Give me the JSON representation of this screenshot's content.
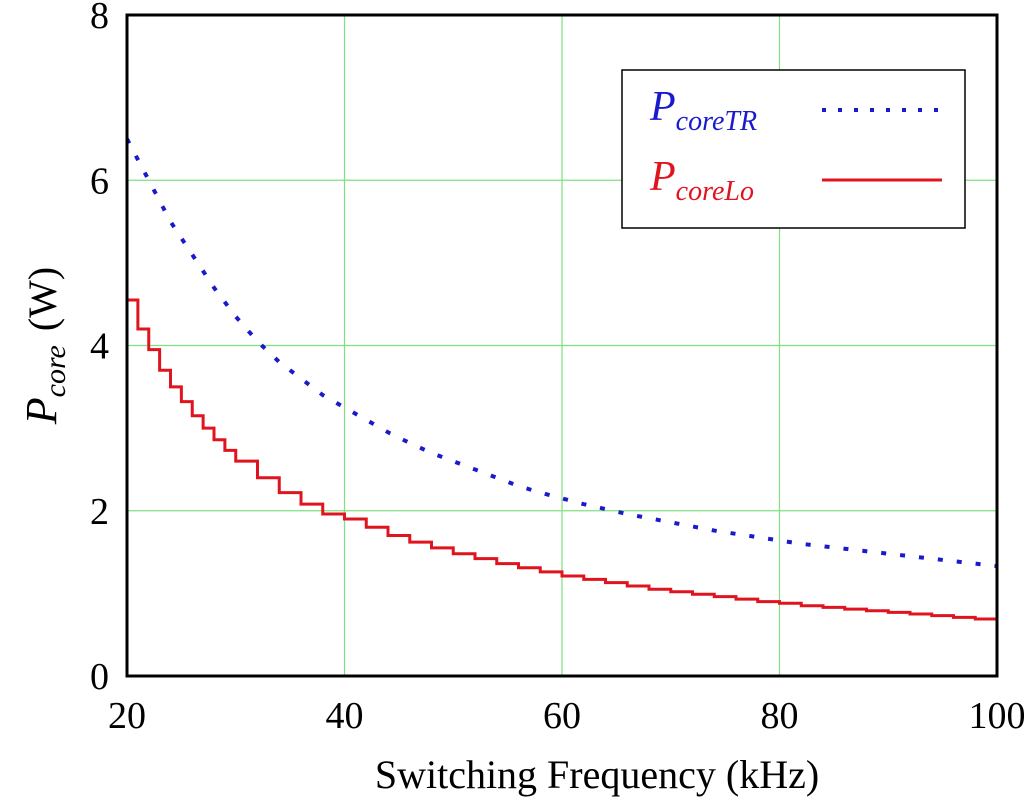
{
  "chart_data": {
    "type": "line",
    "xlabel": "Switching Frequency (kHz)",
    "ylabel": {
      "symbol": "P",
      "subscript": "core",
      "unit": "(W)"
    },
    "xlim": [
      20,
      100
    ],
    "ylim": [
      0,
      8
    ],
    "x_ticks": [
      20,
      40,
      60,
      80,
      100
    ],
    "y_ticks": [
      0,
      2,
      4,
      6,
      8
    ],
    "grid": true,
    "legend_position": "top-right",
    "series": [
      {
        "name": "PcoreTR",
        "legend": {
          "symbol": "P",
          "subscript": "coreTR"
        },
        "color": "#1a1acc",
        "style": "dotted",
        "x": [
          20,
          22,
          24,
          26,
          28,
          30,
          32,
          34,
          36,
          38,
          40,
          42,
          44,
          46,
          48,
          50,
          52,
          54,
          56,
          58,
          60,
          62,
          64,
          66,
          68,
          70,
          72,
          74,
          76,
          78,
          80,
          82,
          84,
          86,
          88,
          90,
          92,
          94,
          96,
          98,
          100
        ],
        "values": [
          6.5,
          6.0,
          5.5,
          5.1,
          4.7,
          4.35,
          4.05,
          3.8,
          3.6,
          3.4,
          3.25,
          3.1,
          2.95,
          2.82,
          2.7,
          2.6,
          2.5,
          2.4,
          2.3,
          2.22,
          2.15,
          2.08,
          2.02,
          1.96,
          1.91,
          1.86,
          1.81,
          1.76,
          1.72,
          1.68,
          1.64,
          1.6,
          1.57,
          1.54,
          1.51,
          1.48,
          1.45,
          1.42,
          1.39,
          1.36,
          1.33
        ]
      },
      {
        "name": "PcoreLo",
        "legend": {
          "symbol": "P",
          "subscript": "coreLo"
        },
        "color": "#e0141e",
        "style": "solid-stepped",
        "x": [
          20,
          21,
          22,
          23,
          24,
          25,
          26,
          27,
          28,
          29,
          30,
          32,
          34,
          36,
          38,
          40,
          42,
          44,
          46,
          48,
          50,
          52,
          54,
          56,
          58,
          60,
          62,
          64,
          66,
          68,
          70,
          72,
          74,
          76,
          78,
          80,
          82,
          84,
          86,
          88,
          90,
          92,
          94,
          96,
          98,
          100
        ],
        "values": [
          4.55,
          4.2,
          3.95,
          3.7,
          3.5,
          3.32,
          3.15,
          3.0,
          2.86,
          2.73,
          2.6,
          2.4,
          2.22,
          2.08,
          1.96,
          1.9,
          1.8,
          1.7,
          1.62,
          1.55,
          1.48,
          1.42,
          1.36,
          1.31,
          1.26,
          1.21,
          1.17,
          1.13,
          1.09,
          1.05,
          1.02,
          0.99,
          0.96,
          0.93,
          0.9,
          0.88,
          0.85,
          0.83,
          0.81,
          0.79,
          0.77,
          0.75,
          0.73,
          0.71,
          0.69,
          0.67
        ]
      }
    ]
  }
}
